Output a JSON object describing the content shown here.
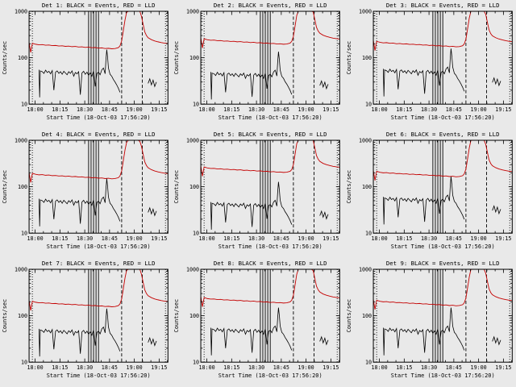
{
  "page": {
    "background": "#e9e9e9",
    "description_note": "3x3 grid of detector count-rate time plots"
  },
  "chart_data": {
    "type": "line",
    "title": "",
    "xlabel": "Start Time (18-Oct-03 17:56:20)",
    "ylabel": "Counts/sec",
    "legend_note": "BLACK = Events, RED = LLD",
    "colors": {
      "events": "#000000",
      "lld": "#c40000"
    },
    "x_unit": "minutes since 17:56:20",
    "xlim": [
      0,
      84
    ],
    "ylim_log": [
      10,
      1000
    ],
    "grid": false,
    "xticks": {
      "values": [
        3.67,
        18.67,
        33.67,
        48.67,
        63.67,
        78.67
      ],
      "labels": [
        "18:00",
        "18:15",
        "18:30",
        "18:45",
        "19:00",
        "19:15"
      ]
    },
    "yticks": {
      "values": [
        10,
        100,
        1000
      ],
      "labels": [
        "10",
        "100",
        "1000"
      ]
    },
    "guides": {
      "solid": [
        36,
        37.5,
        39,
        40.5,
        42
      ],
      "dashed": [
        56,
        68.5
      ],
      "dotted": [
        2,
        82.5
      ]
    },
    "base": {
      "lld": {
        "x": [
          0,
          1,
          2,
          3,
          4,
          6,
          8,
          10,
          12,
          14,
          16,
          18,
          20,
          22,
          24,
          26,
          28,
          30,
          32,
          34,
          36,
          38,
          40,
          42,
          44,
          46,
          48,
          50,
          52,
          54,
          55,
          56,
          57,
          58,
          59,
          60,
          62,
          64,
          66,
          67,
          68,
          69,
          70,
          71,
          72,
          74,
          76,
          78,
          80,
          82,
          84
        ],
        "y": [
          215,
          130,
          205,
          200,
          195,
          190,
          192,
          186,
          188,
          182,
          184,
          179,
          181,
          176,
          178,
          173,
          175,
          170,
          172,
          167,
          169,
          164,
          166,
          161,
          163,
          158,
          160,
          156,
          158,
          165,
          180,
          230,
          380,
          650,
          950,
          1150,
          1250,
          1250,
          1150,
          1000,
          780,
          520,
          360,
          300,
          270,
          245,
          230,
          220,
          212,
          206,
          202
        ]
      },
      "events": {
        "x": [
          6,
          6.4,
          6.8,
          8,
          9,
          10,
          11,
          12,
          13,
          14,
          15,
          16,
          17,
          18,
          19,
          20,
          21,
          22,
          23,
          24,
          25,
          26,
          27,
          28,
          29,
          30,
          31,
          32,
          33,
          34,
          35,
          36,
          37,
          38,
          39,
          40,
          41,
          42,
          43,
          44,
          45,
          46,
          46.5,
          47,
          47.5,
          48,
          49,
          50,
          51,
          52,
          53,
          54,
          55,
          60,
          72,
          73,
          74,
          75,
          76,
          77
        ],
        "y": [
          55,
          14,
          52,
          50,
          46,
          54,
          48,
          51,
          45,
          53,
          20,
          49,
          52,
          46,
          50,
          44,
          51,
          47,
          43,
          50,
          46,
          52,
          40,
          48,
          45,
          50,
          16,
          47,
          51,
          44,
          49,
          42,
          47,
          40,
          52,
          24,
          46,
          49,
          43,
          55,
          60,
          45,
          90,
          150,
          100,
          60,
          44,
          40,
          34,
          30,
          26,
          22,
          18,
          null,
          28,
          35,
          26,
          33,
          24,
          30
        ]
      }
    },
    "detectors": [
      {
        "title": "Det 1: BLACK = Events, RED = LLD",
        "lld_scale": 1.0,
        "events_scale": 1.0
      },
      {
        "title": "Det 2: BLACK = Events, RED = LLD",
        "lld_scale": 1.25,
        "events_scale": 0.9
      },
      {
        "title": "Det 3: BLACK = Events, RED = LLD",
        "lld_scale": 1.1,
        "events_scale": 1.05
      },
      {
        "title": "Det 4: BLACK = Events, RED = LLD",
        "lld_scale": 0.95,
        "events_scale": 1.0
      },
      {
        "title": "Det 5: BLACK = Events, RED = LLD",
        "lld_scale": 1.3,
        "events_scale": 0.85
      },
      {
        "title": "Det 6: BLACK = Events, RED = LLD",
        "lld_scale": 1.05,
        "events_scale": 1.1
      },
      {
        "title": "Det 7: BLACK = Events, RED = LLD",
        "lld_scale": 1.0,
        "events_scale": 0.95
      },
      {
        "title": "Det 8: BLACK = Events, RED = LLD",
        "lld_scale": 1.2,
        "events_scale": 1.0
      },
      {
        "title": "Det 9: BLACK = Events, RED = LLD",
        "lld_scale": 1.05,
        "events_scale": 1.0
      }
    ]
  }
}
